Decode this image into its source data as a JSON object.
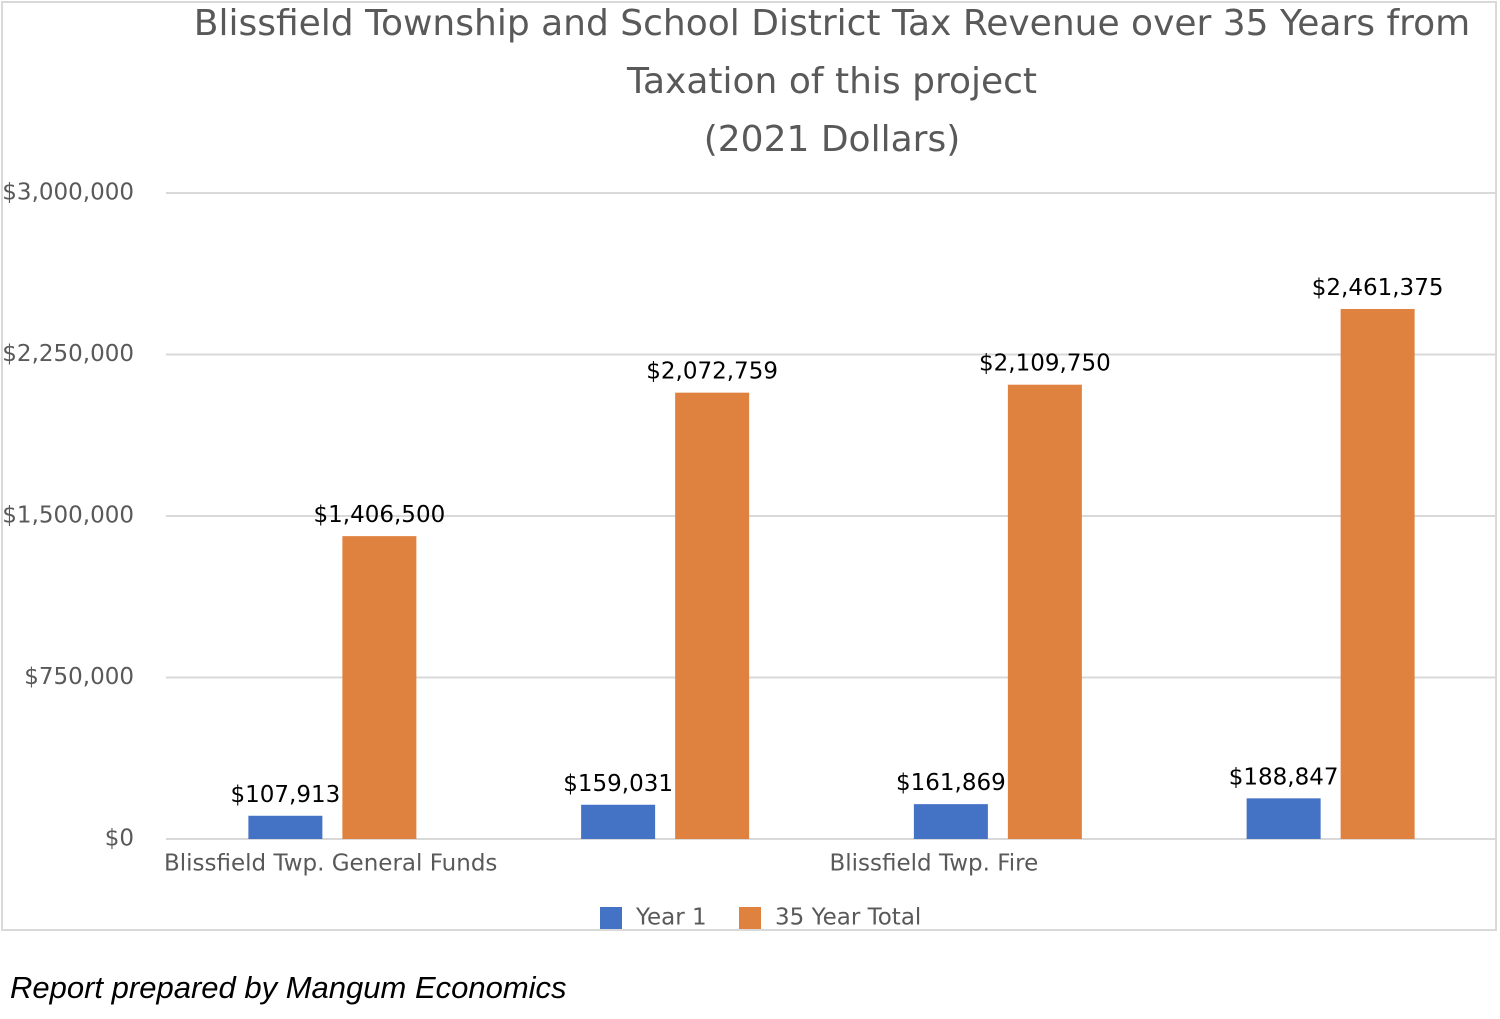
{
  "chart_data": {
    "type": "bar",
    "title": "Blissfield Township and School District Tax Revenue over 35 Years from Taxation of this project (2021 Dollars)",
    "title_lines": [
      "Blissfield Township and School District Tax Revenue over 35 Years from",
      "Taxation of this project",
      "(2021 Dollars)"
    ],
    "categories": [
      "Blissfield Twp. General Funds",
      "",
      "Blissfield Twp. Fire",
      ""
    ],
    "series": [
      {
        "name": "Year 1",
        "color": "#4472c4",
        "values": [
          107913,
          159031,
          161869,
          188847
        ],
        "labels": [
          "$107,913",
          "$159,031",
          "$161,869",
          "$188,847"
        ]
      },
      {
        "name": "35 Year Total",
        "color": "#e0823f",
        "values": [
          1406500,
          2072759,
          2109750,
          2461375
        ],
        "labels": [
          "$1,406,500",
          "$2,072,759",
          "$2,109,750",
          "$2,461,375"
        ]
      }
    ],
    "ylim": [
      0,
      3000000
    ],
    "y_ticks": [
      {
        "value": 0,
        "label": "$0"
      },
      {
        "value": 750000,
        "label": "$750,000"
      },
      {
        "value": 1500000,
        "label": "$1,500,000"
      },
      {
        "value": 2250000,
        "label": "$2,250,000"
      },
      {
        "value": 3000000,
        "label": "$3,000,000"
      }
    ],
    "xlabel": "",
    "ylabel": "",
    "grid": true,
    "legend_position": "bottom"
  },
  "footer": {
    "note": "Report prepared by Mangum Economics"
  }
}
